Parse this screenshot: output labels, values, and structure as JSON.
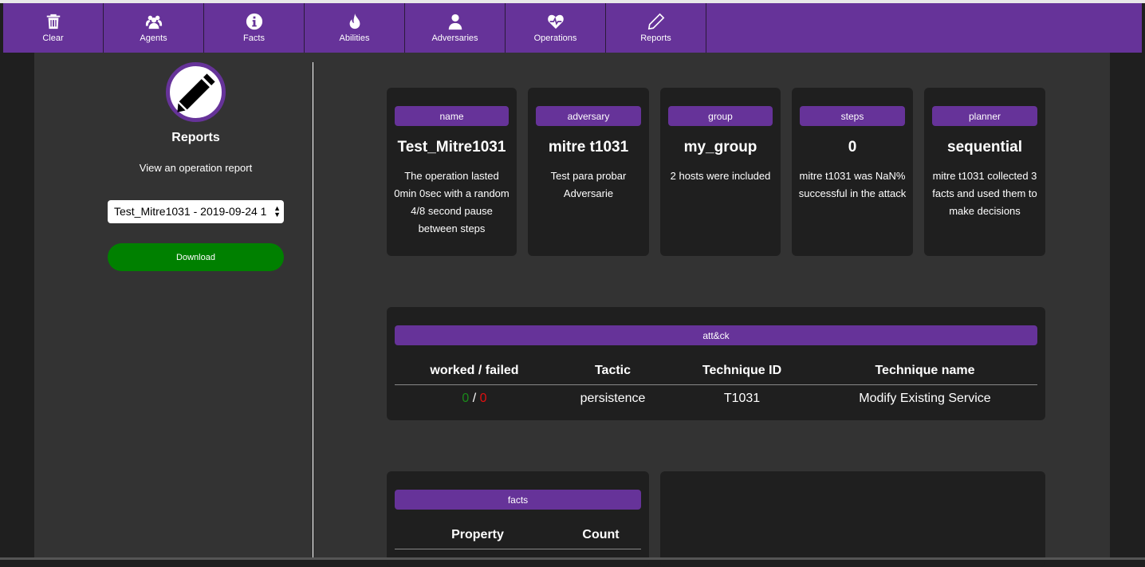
{
  "nav": [
    {
      "label": "Clear",
      "icon": "trash-icon"
    },
    {
      "label": "Agents",
      "icon": "users-icon"
    },
    {
      "label": "Facts",
      "icon": "info-icon"
    },
    {
      "label": "Abilities",
      "icon": "fire-icon"
    },
    {
      "label": "Adversaries",
      "icon": "user-icon"
    },
    {
      "label": "Operations",
      "icon": "heartbeat-icon"
    },
    {
      "label": "Reports",
      "icon": "pencil-icon"
    }
  ],
  "sidebar": {
    "title": "Reports",
    "subtitle": "View an operation report",
    "select_value": "Test_Mitre1031 - 2019-09-24 1",
    "download_label": "Download"
  },
  "summary": [
    {
      "label": "name",
      "value": "Test_Mitre1031",
      "desc": "The operation lasted 0min 0sec with a random 4/8 second pause between steps"
    },
    {
      "label": "adversary",
      "value": "mitre t1031",
      "desc": "Test para probar Adversarie"
    },
    {
      "label": "group",
      "value": "my_group",
      "desc": "2 hosts were included"
    },
    {
      "label": "steps",
      "value": "0",
      "desc": "mitre t1031 was NaN% successful in the attack"
    },
    {
      "label": "planner",
      "value": "sequential",
      "desc": "mitre t1031 collected 3 facts and used them to make decisions"
    }
  ],
  "attack": {
    "label": "att&ck",
    "headers": [
      "worked / failed",
      "Tactic",
      "Technique ID",
      "Technique name"
    ],
    "rows": [
      {
        "worked": "0",
        "sep": "/",
        "failed": "0",
        "tactic": "persistence",
        "technique_id": "T1031",
        "technique_name": "Modify Existing Service"
      }
    ]
  },
  "facts": {
    "label": "facts",
    "headers": [
      "Property",
      "Count"
    ]
  },
  "colors": {
    "accent": "#663399",
    "success": "#008000",
    "failed": "#e01010"
  }
}
